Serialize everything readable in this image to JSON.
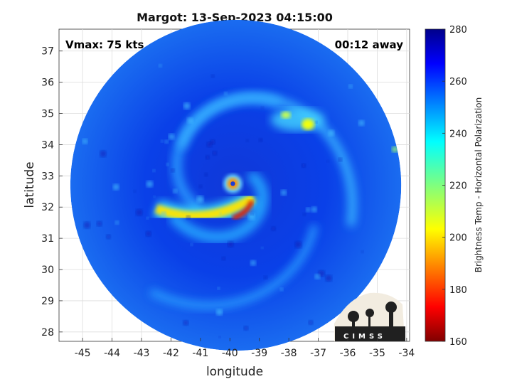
{
  "chart_data": {
    "type": "heatmap",
    "title": "Margot: 13-Sep-2023 04:15:00",
    "annotations": {
      "vmax": "Vmax: 75 kts",
      "time_away": "00:12 away"
    },
    "xlabel": "longitude",
    "ylabel": "latitude",
    "xlim": [
      -45.8,
      -33.9
    ],
    "ylim": [
      27.7,
      37.7
    ],
    "xticks": [
      "-45",
      "-44",
      "-43",
      "-42",
      "-41",
      "-40",
      "-39",
      "-38",
      "-37",
      "-36",
      "-35",
      "-34"
    ],
    "yticks": [
      "28",
      "29",
      "30",
      "31",
      "32",
      "33",
      "34",
      "35",
      "36",
      "37"
    ],
    "grid": true,
    "storm_center": {
      "lon": -39.9,
      "lat": 32.75
    },
    "swath": {
      "center_lon": -39.8,
      "center_lat": 32.7,
      "radius_deg_lat": 5.3
    },
    "colorbar": {
      "label": "Brightness Temp - Horizontal Polarization",
      "min": 160,
      "max": 280,
      "ticks": [
        "280",
        "260",
        "240",
        "220",
        "200",
        "180",
        "160"
      ],
      "colormap": "jet"
    },
    "features": [
      {
        "name": "eyewall",
        "lon": -39.9,
        "lat": 32.75,
        "value": 190
      },
      {
        "name": "southern rainband",
        "lon_range": [
          -42.5,
          -39.2
        ],
        "lat_range": [
          31.4,
          32.3
        ],
        "value": 200
      },
      {
        "name": "northeast convection",
        "lon_range": [
          -38.6,
          -36.8
        ],
        "lat_range": [
          34.3,
          35.3
        ],
        "value": 205
      }
    ],
    "watermark": "CIMSS"
  }
}
